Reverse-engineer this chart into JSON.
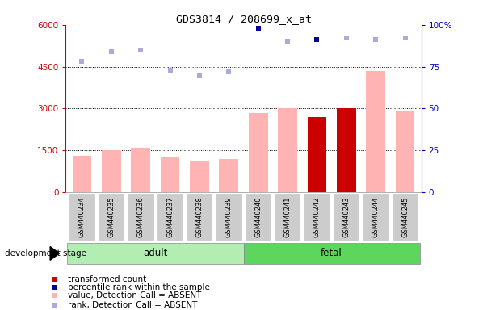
{
  "title": "GDS3814 / 208699_x_at",
  "samples": [
    "GSM440234",
    "GSM440235",
    "GSM440236",
    "GSM440237",
    "GSM440238",
    "GSM440239",
    "GSM440240",
    "GSM440241",
    "GSM440242",
    "GSM440243",
    "GSM440244",
    "GSM440245"
  ],
  "bar_values": [
    1300,
    1500,
    1600,
    1250,
    1100,
    1200,
    2850,
    3020,
    2700,
    3020,
    4350,
    2900
  ],
  "bar_colors": [
    "#FFB3B3",
    "#FFB3B3",
    "#FFB3B3",
    "#FFB3B3",
    "#FFB3B3",
    "#FFB3B3",
    "#FFB3B3",
    "#FFB3B3",
    "#CC0000",
    "#CC0000",
    "#FFB3B3",
    "#FFB3B3"
  ],
  "rank_values": [
    78,
    84,
    85,
    73,
    70,
    72,
    98,
    90,
    91,
    92,
    91,
    92
  ],
  "rank_is_dark": [
    false,
    false,
    false,
    false,
    false,
    false,
    true,
    false,
    true,
    false,
    false,
    false
  ],
  "ylim_left": [
    0,
    6000
  ],
  "ylim_right": [
    0,
    100
  ],
  "yticks_left": [
    0,
    1500,
    3000,
    4500,
    6000
  ],
  "yticks_right": [
    0,
    25,
    50,
    75,
    100
  ],
  "yticklabels_left": [
    "0",
    "1500",
    "3000",
    "4500",
    "6000"
  ],
  "yticklabels_right": [
    "0",
    "25",
    "50",
    "75",
    "100%"
  ],
  "adult_color": "#B2EEB2",
  "fetal_color": "#5CD65C",
  "group_label_adult": "adult",
  "group_label_fetal": "fetal",
  "development_stage_label": "development stage",
  "rank_color_light": "#AAAADD",
  "rank_color_dark": "#000099",
  "left_axis_color": "#CC0000",
  "right_axis_color": "#0000CC",
  "background_color": "#FFFFFF",
  "grid_color": "#000000",
  "legend_labels": [
    "transformed count",
    "percentile rank within the sample",
    "value, Detection Call = ABSENT",
    "rank, Detection Call = ABSENT"
  ],
  "legend_colors": [
    "#CC0000",
    "#000099",
    "#FFB3B3",
    "#AAAADD"
  ]
}
